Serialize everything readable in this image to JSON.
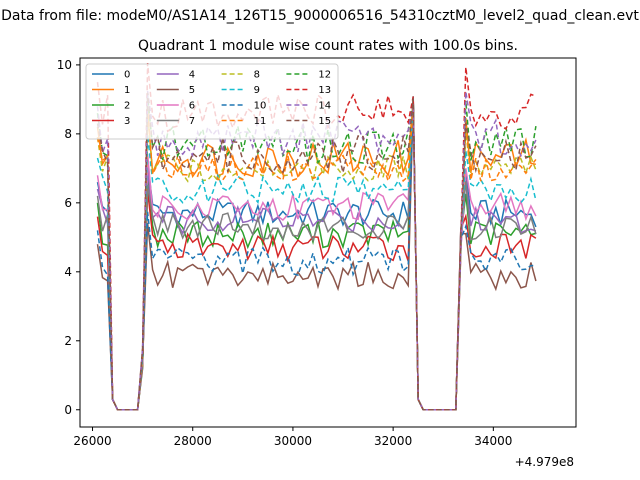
{
  "figure": {
    "suptitle": "Data from file: modeM0/AS1A14_126T15_9000006516_54310cztM0_level2_quad_clean.evt",
    "offset_label": "+4.979e8"
  },
  "chart_data": {
    "type": "line",
    "title": "Quadrant 1 module wise count rates with 100.0s bins.",
    "xlabel": "",
    "ylabel": "",
    "x_offset": 497900000,
    "xlim": [
      25750,
      35650
    ],
    "ylim": [
      -0.5,
      10.2
    ],
    "x_ticks": [
      26000,
      28000,
      30000,
      32000,
      34000
    ],
    "y_ticks": [
      0,
      2,
      4,
      6,
      8,
      10
    ],
    "grid": false,
    "legend_position": "top-left",
    "legend_columns": 4,
    "gap_intervals": [
      [
        26350,
        26950
      ],
      [
        32450,
        33300
      ]
    ],
    "segments": [
      {
        "x_start": 26100,
        "x_end": 26300
      },
      {
        "x_start": 27000,
        "x_end": 32400
      },
      {
        "x_start": 33350,
        "x_end": 34900
      }
    ],
    "series": [
      {
        "name": "0",
        "color": "#1f77b4",
        "style": "solid",
        "base": 5.7
      },
      {
        "name": "1",
        "color": "#ff7f0e",
        "style": "solid",
        "base": 7.3
      },
      {
        "name": "2",
        "color": "#2ca02c",
        "style": "solid",
        "base": 5.1
      },
      {
        "name": "3",
        "color": "#d62728",
        "style": "solid",
        "base": 4.7
      },
      {
        "name": "4",
        "color": "#9467bd",
        "style": "solid",
        "base": 5.5
      },
      {
        "name": "5",
        "color": "#8c564b",
        "style": "solid",
        "base": 3.9
      },
      {
        "name": "6",
        "color": "#e377c2",
        "style": "solid",
        "base": 5.9
      },
      {
        "name": "7",
        "color": "#7f7f7f",
        "style": "solid",
        "base": 5.3
      },
      {
        "name": "8",
        "color": "#bcbd22",
        "style": "dashed",
        "base": 7.0
      },
      {
        "name": "9",
        "color": "#17becf",
        "style": "dashed",
        "base": 6.4
      },
      {
        "name": "10",
        "color": "#1f77b4",
        "style": "dashed",
        "base": 4.3
      },
      {
        "name": "11",
        "color": "#ff7f0e",
        "style": "dashed",
        "base": 7.0
      },
      {
        "name": "12",
        "color": "#2ca02c",
        "style": "dashed",
        "base": 7.7
      },
      {
        "name": "13",
        "color": "#d62728",
        "style": "dashed",
        "base": 8.6
      },
      {
        "name": "14",
        "color": "#9467bd",
        "style": "dashed",
        "base": 7.9
      },
      {
        "name": "15",
        "color": "#8c564b",
        "style": "dashed",
        "base": 7.4
      }
    ]
  }
}
